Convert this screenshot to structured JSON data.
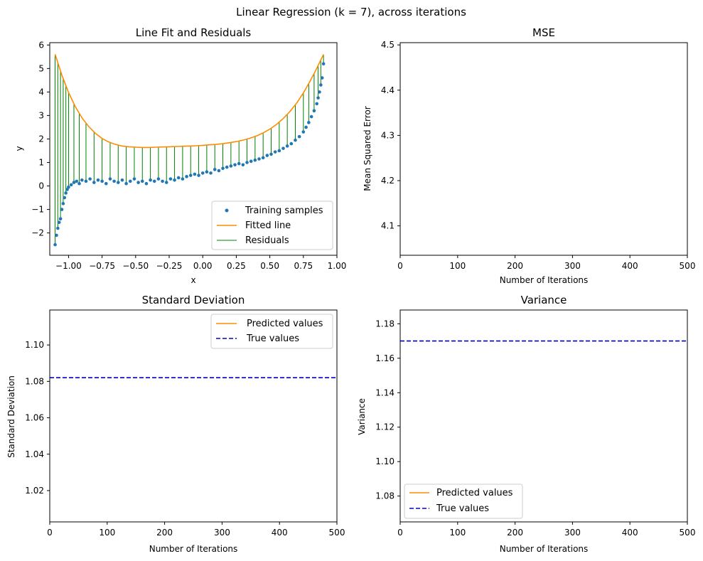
{
  "suptitle": "Linear Regression (k = 7), across iterations",
  "colors": {
    "samples": "#1f77b4",
    "fitted": "#ff8c00",
    "residuals": "#008000",
    "true_line": "#0000cd",
    "axes": "#000000"
  },
  "chart_data": [
    {
      "id": "fit",
      "type": "scatter",
      "title": "Line Fit and Residuals",
      "xlabel": "x",
      "ylabel": "y",
      "xlim": [
        -1.14,
        1.0
      ],
      "ylim": [
        -2.95,
        6.1
      ],
      "xticks": [
        -1.0,
        -0.75,
        -0.5,
        -0.25,
        0.0,
        0.25,
        0.5,
        0.75,
        1.0
      ],
      "xtick_labels": [
        "−1.00",
        "−0.75",
        "−0.50",
        "−0.25",
        "0.00",
        "0.25",
        "0.50",
        "0.75",
        "1.00"
      ],
      "yticks": [
        -2,
        -1,
        0,
        1,
        2,
        3,
        4,
        5,
        6
      ],
      "ytick_labels": [
        "−2",
        "−1",
        "0",
        "1",
        "2",
        "3",
        "4",
        "5",
        "6"
      ],
      "legend": {
        "position": "lower-right",
        "entries": [
          "Training samples",
          "Fitted line",
          "Residuals"
        ]
      },
      "fitted_line": {
        "name": "Fitted line",
        "x": [
          -1.1,
          -1.05,
          -1.0,
          -0.95,
          -0.9,
          -0.85,
          -0.8,
          -0.75,
          -0.7,
          -0.65,
          -0.6,
          -0.55,
          -0.5,
          -0.45,
          -0.4,
          -0.35,
          -0.3,
          -0.25,
          -0.2,
          -0.15,
          -0.1,
          -0.05,
          0.0,
          0.05,
          0.1,
          0.15,
          0.2,
          0.25,
          0.3,
          0.35,
          0.4,
          0.45,
          0.5,
          0.55,
          0.6,
          0.65,
          0.7,
          0.75,
          0.8,
          0.85,
          0.9
        ],
        "y": [
          5.6,
          4.72,
          3.98,
          3.38,
          2.9,
          2.53,
          2.24,
          2.02,
          1.87,
          1.77,
          1.7,
          1.67,
          1.65,
          1.64,
          1.64,
          1.65,
          1.66,
          1.67,
          1.68,
          1.69,
          1.7,
          1.71,
          1.73,
          1.75,
          1.77,
          1.8,
          1.84,
          1.89,
          1.95,
          2.03,
          2.13,
          2.26,
          2.42,
          2.62,
          2.87,
          3.17,
          3.53,
          3.96,
          4.46,
          5.01,
          5.6
        ]
      },
      "samples": {
        "name": "Training samples",
        "x": [
          -1.1,
          -1.09,
          -1.08,
          -1.07,
          -1.06,
          -1.05,
          -1.04,
          -1.03,
          -1.02,
          -1.01,
          -1.0,
          -0.98,
          -0.96,
          -0.94,
          -0.92,
          -0.9,
          -0.87,
          -0.84,
          -0.81,
          -0.78,
          -0.75,
          -0.72,
          -0.69,
          -0.66,
          -0.63,
          -0.6,
          -0.57,
          -0.54,
          -0.51,
          -0.48,
          -0.45,
          -0.42,
          -0.39,
          -0.36,
          -0.33,
          -0.3,
          -0.27,
          -0.24,
          -0.21,
          -0.18,
          -0.15,
          -0.12,
          -0.09,
          -0.06,
          -0.03,
          0.0,
          0.03,
          0.06,
          0.09,
          0.12,
          0.15,
          0.18,
          0.21,
          0.24,
          0.27,
          0.3,
          0.33,
          0.36,
          0.39,
          0.42,
          0.45,
          0.48,
          0.51,
          0.54,
          0.57,
          0.6,
          0.63,
          0.66,
          0.69,
          0.72,
          0.75,
          0.77,
          0.79,
          0.81,
          0.83,
          0.85,
          0.86,
          0.87,
          0.88,
          0.89,
          0.9
        ],
        "y": [
          -2.5,
          -2.1,
          -1.8,
          -1.55,
          -1.4,
          -1.0,
          -0.75,
          -0.5,
          -0.3,
          -0.15,
          -0.05,
          0.05,
          0.15,
          0.2,
          0.1,
          0.25,
          0.2,
          0.3,
          0.15,
          0.25,
          0.2,
          0.1,
          0.3,
          0.2,
          0.15,
          0.25,
          0.1,
          0.2,
          0.3,
          0.15,
          0.2,
          0.1,
          0.25,
          0.2,
          0.3,
          0.2,
          0.15,
          0.3,
          0.25,
          0.35,
          0.3,
          0.4,
          0.45,
          0.5,
          0.45,
          0.55,
          0.6,
          0.55,
          0.7,
          0.65,
          0.75,
          0.8,
          0.85,
          0.9,
          0.95,
          0.9,
          1.0,
          1.05,
          1.1,
          1.15,
          1.2,
          1.3,
          1.35,
          1.45,
          1.5,
          1.6,
          1.7,
          1.8,
          1.95,
          2.1,
          2.3,
          2.5,
          2.7,
          2.95,
          3.2,
          3.5,
          3.75,
          4.0,
          4.3,
          4.6,
          5.2
        ]
      },
      "residual_x": [
        -1.1,
        -1.08,
        -1.06,
        -1.04,
        -1.02,
        -1.0,
        -0.96,
        -0.92,
        -0.87,
        -0.81,
        -0.75,
        -0.69,
        -0.63,
        -0.57,
        -0.51,
        -0.45,
        -0.39,
        -0.33,
        -0.27,
        -0.21,
        -0.15,
        -0.09,
        -0.03,
        0.03,
        0.09,
        0.15,
        0.21,
        0.27,
        0.33,
        0.39,
        0.45,
        0.51,
        0.57,
        0.63,
        0.69,
        0.75,
        0.79,
        0.83,
        0.86,
        0.88,
        0.9
      ]
    },
    {
      "id": "mse",
      "type": "line",
      "title": "MSE",
      "xlabel": "Number of Iterations",
      "ylabel": "Mean Squared Error",
      "xlim": [
        0,
        500
      ],
      "ylim": [
        4.035,
        4.505
      ],
      "xticks": [
        0,
        100,
        200,
        300,
        400,
        500
      ],
      "xtick_labels": [
        "0",
        "100",
        "200",
        "300",
        "400",
        "500"
      ],
      "yticks": [
        4.1,
        4.2,
        4.3,
        4.4,
        4.5
      ],
      "ytick_labels": [
        "4.1",
        "4.2",
        "4.3",
        "4.4",
        "4.5"
      ],
      "series": []
    },
    {
      "id": "std",
      "type": "line",
      "title": "Standard Deviation",
      "xlabel": "Number of Iterations",
      "ylabel": "Standard Deviation",
      "xlim": [
        0,
        500
      ],
      "ylim": [
        1.0028,
        1.1192
      ],
      "xticks": [
        0,
        100,
        200,
        300,
        400,
        500
      ],
      "xtick_labels": [
        "0",
        "100",
        "200",
        "300",
        "400",
        "500"
      ],
      "yticks": [
        1.02,
        1.04,
        1.06,
        1.08,
        1.1
      ],
      "ytick_labels": [
        "1.02",
        "1.04",
        "1.06",
        "1.08",
        "1.10"
      ],
      "legend": {
        "position": "top-right",
        "entries": [
          "Predicted values",
          "True values"
        ]
      },
      "series": [
        {
          "name": "Predicted values",
          "values": []
        },
        {
          "name": "True values",
          "constant": 1.082
        }
      ]
    },
    {
      "id": "var",
      "type": "line",
      "title": "Variance",
      "xlabel": "Number of Iterations",
      "ylabel": "Variance",
      "xlim": [
        0,
        500
      ],
      "ylim": [
        1.065,
        1.188
      ],
      "xticks": [
        0,
        100,
        200,
        300,
        400,
        500
      ],
      "xtick_labels": [
        "0",
        "100",
        "200",
        "300",
        "400",
        "500"
      ],
      "yticks": [
        1.08,
        1.1,
        1.12,
        1.14,
        1.16,
        1.18
      ],
      "ytick_labels": [
        "1.08",
        "1.10",
        "1.12",
        "1.14",
        "1.16",
        "1.18"
      ],
      "legend": {
        "position": "lower-left",
        "entries": [
          "Predicted values",
          "True values"
        ]
      },
      "series": [
        {
          "name": "Predicted values",
          "values": []
        },
        {
          "name": "True values",
          "constant": 1.17
        }
      ]
    }
  ]
}
